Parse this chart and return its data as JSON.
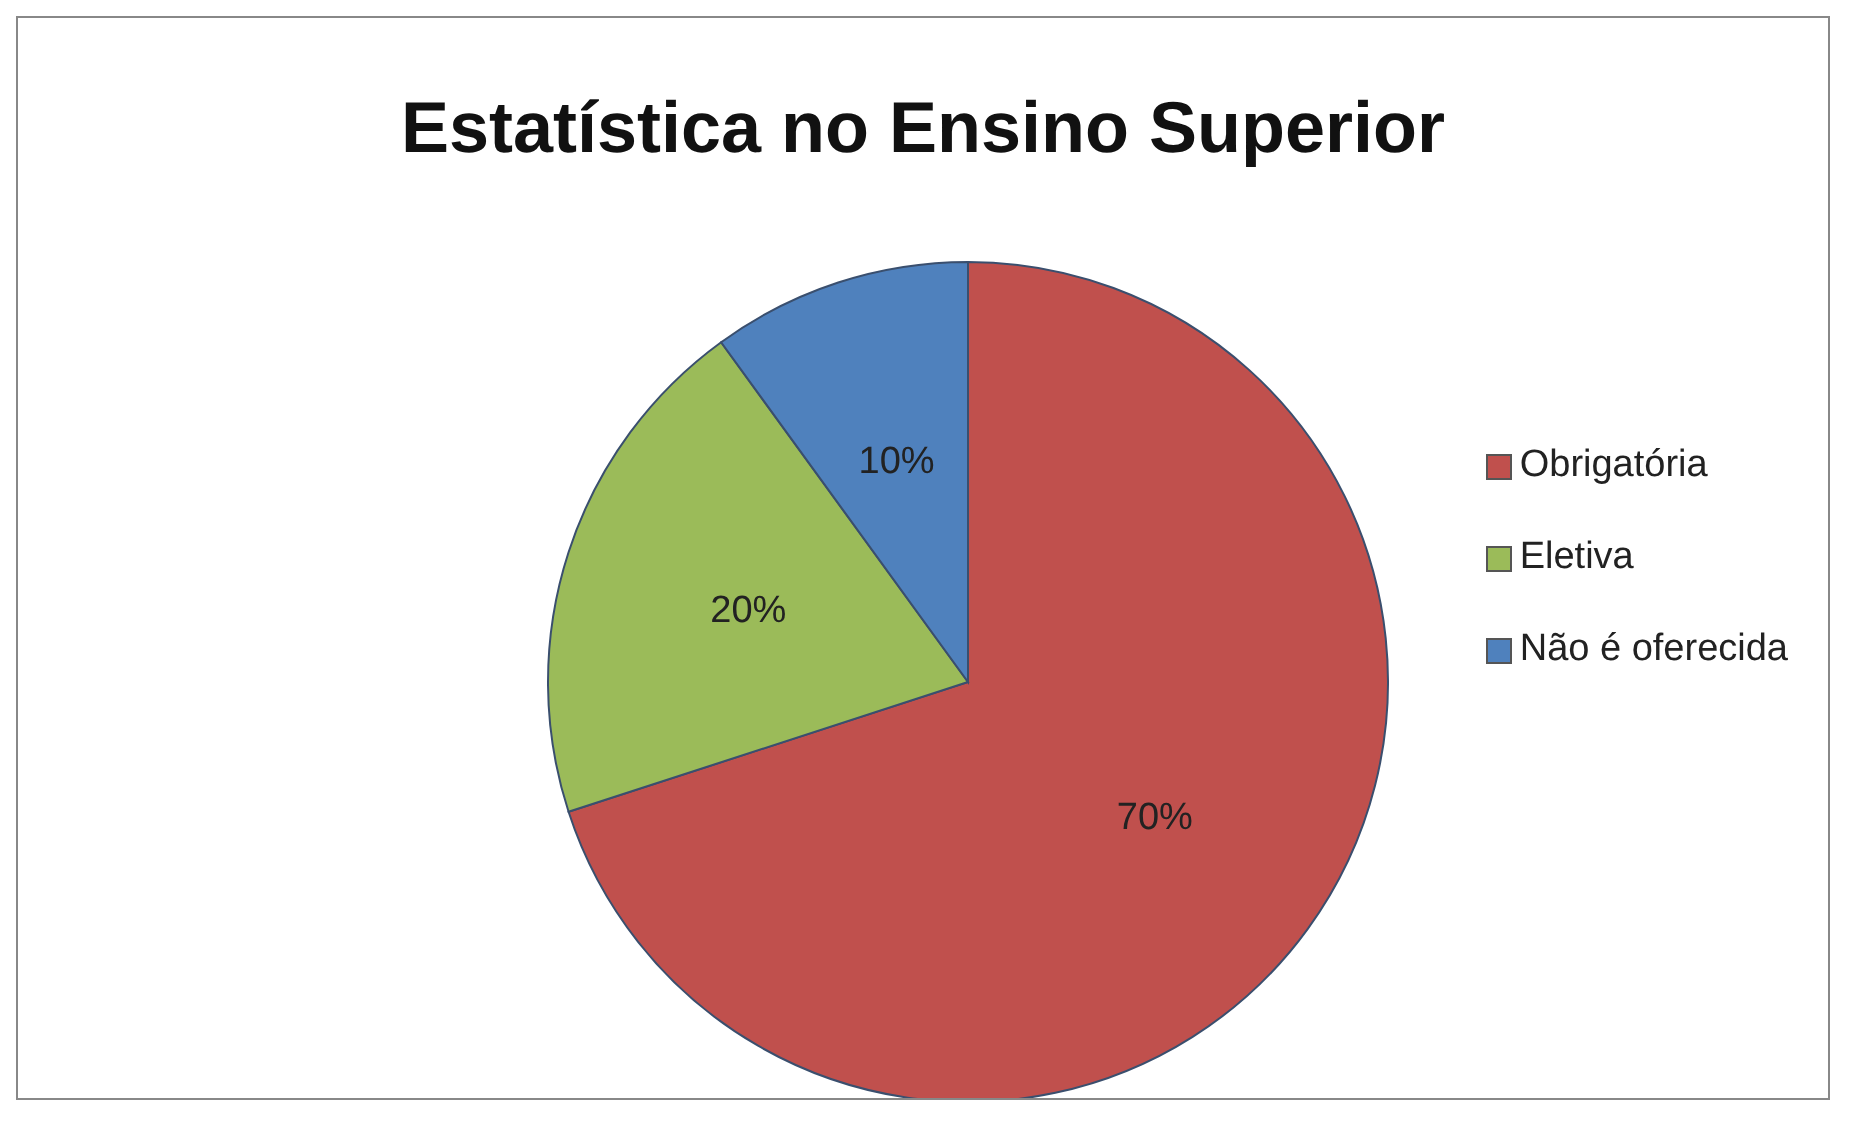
{
  "chart_data": {
    "type": "pie",
    "title": "Estatística no Ensino Superior",
    "categories": [
      "Obrigatória",
      "Eletiva",
      "Não é oferecida"
    ],
    "values": [
      70,
      20,
      10
    ],
    "colors": [
      "#c0504d",
      "#9bbb59",
      "#4f81bd"
    ],
    "value_labels": [
      "70%",
      "20%",
      "10%"
    ],
    "legend": "right"
  }
}
